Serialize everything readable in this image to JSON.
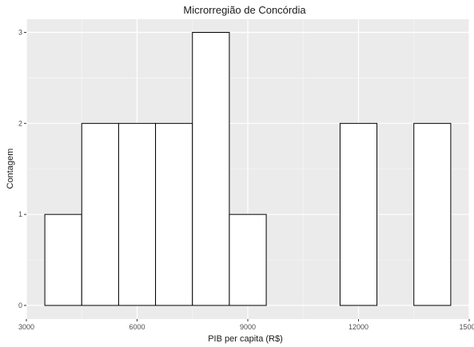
{
  "chart_data": {
    "type": "bar",
    "title": "Microrregião de  Concórdia",
    "xlabel": "PIB per capita (R$)",
    "ylabel": "Contagem",
    "xlim": [
      3000,
      15000
    ],
    "ylim": [
      0,
      3
    ],
    "x_ticks": [
      3000,
      6000,
      9000,
      12000,
      15000
    ],
    "x_tick_labels": [
      "3000",
      "6000",
      "9000",
      "12000",
      "15000"
    ],
    "y_ticks": [
      0,
      1,
      2,
      3
    ],
    "y_tick_labels": [
      "0",
      "1",
      "2",
      "3"
    ],
    "bins": [
      {
        "start": 3500,
        "end": 4500,
        "count": 1
      },
      {
        "start": 4500,
        "end": 5500,
        "count": 2
      },
      {
        "start": 5500,
        "end": 6500,
        "count": 2
      },
      {
        "start": 6500,
        "end": 7500,
        "count": 2
      },
      {
        "start": 7500,
        "end": 8500,
        "count": 3
      },
      {
        "start": 8500,
        "end": 9500,
        "count": 1
      },
      {
        "start": 9500,
        "end": 10500,
        "count": 0
      },
      {
        "start": 10500,
        "end": 11500,
        "count": 0
      },
      {
        "start": 11500,
        "end": 12500,
        "count": 2
      },
      {
        "start": 12500,
        "end": 13500,
        "count": 0
      },
      {
        "start": 13500,
        "end": 14500,
        "count": 2
      }
    ],
    "grid": true,
    "legend": "none",
    "colors": {
      "panel_background": "#ebebeb",
      "grid_major": "#ffffff",
      "grid_minor": "#f5f5f5",
      "bar_fill": "#ffffff",
      "bar_stroke": "#000000"
    }
  }
}
